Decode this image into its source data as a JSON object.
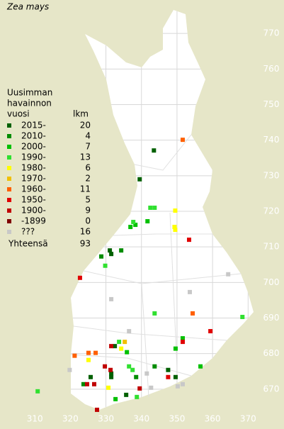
{
  "map": {
    "title": "Zea mays",
    "legend": {
      "heading": [
        "Uusimman",
        "havainnon",
        "vuosi"
      ],
      "count_heading": "lkm",
      "items": [
        {
          "label": "2015-",
          "count": 20,
          "color": "#006000",
          "points": [
            [
              343.5,
              737.1
            ],
            [
              339.5,
              729
            ],
            [
              331.1,
              709
            ],
            [
              331.5,
              708
            ],
            [
              332.5,
              682.1
            ],
            [
              347.5,
              675.4
            ],
            [
              325.7,
              673.4
            ],
            [
              331.5,
              674.4
            ],
            [
              331.5,
              673.4
            ],
            [
              349.6,
              673.4
            ],
            [
              335.7,
              668.4
            ]
          ]
        },
        {
          "label": "2010-",
          "count": 4,
          "color": "#008c00",
          "points": [
            [
              328.7,
              707.3
            ],
            [
              334.3,
              709
            ],
            [
              343.7,
              676.4
            ],
            [
              323.7,
              671.4
            ],
            [
              338.5,
              673.4
            ]
          ]
        },
        {
          "label": "2000-",
          "count": 7,
          "color": "#00c000",
          "points": [
            [
              341.7,
              717.2
            ],
            [
              338.3,
              716.2
            ],
            [
              336.9,
              715.6
            ],
            [
              351.6,
              684.3
            ],
            [
              349.6,
              681.4
            ],
            [
              335.9,
              680.4
            ],
            [
              356.6,
              676.4
            ],
            [
              332.7,
              667.2
            ]
          ]
        },
        {
          "label": "1990-",
          "count": 13,
          "color": "#30e030",
          "points": [
            [
              342.5,
              721
            ],
            [
              343.7,
              721
            ],
            [
              337.7,
              717
            ],
            [
              329.8,
              704.7
            ],
            [
              343.7,
              691.3
            ],
            [
              368.4,
              690.3
            ],
            [
              333.7,
              683.3
            ],
            [
              336.5,
              676.4
            ],
            [
              337.5,
              675.4
            ],
            [
              338.7,
              667.8
            ],
            [
              310.8,
              669.4
            ]
          ]
        },
        {
          "label": "1980-",
          "count": 6,
          "color": "#ffff00",
          "points": [
            [
              349.5,
              720.2
            ],
            [
              349.3,
              715.6
            ],
            [
              349.5,
              714.8
            ],
            [
              334.3,
              681.4
            ],
            [
              325.1,
              678.2
            ],
            [
              330.7,
              670.4
            ]
          ]
        },
        {
          "label": "1970-",
          "count": 2,
          "color": "#f0c000",
          "points": [
            [
              335.3,
              683.3
            ]
          ]
        },
        {
          "label": "1960-",
          "count": 11,
          "color": "#ff6000",
          "points": [
            [
              351.6,
              740.1
            ],
            [
              354.4,
              691.3
            ],
            [
              321.2,
              679.4
            ],
            [
              325.1,
              680.2
            ],
            [
              327.1,
              680.2
            ]
          ]
        },
        {
          "label": "1950-",
          "count": 5,
          "color": "#e00000",
          "points": [
            [
              353.4,
              712
            ],
            [
              322.7,
              701.3
            ],
            [
              359.4,
              686.3
            ],
            [
              351.6,
              683.3
            ],
            [
              347.5,
              673.4
            ]
          ]
        },
        {
          "label": "1900-",
          "count": 9,
          "color": "#c00000",
          "points": [
            [
              331.5,
              682.1
            ],
            [
              331.3,
              675.4
            ],
            [
              329.7,
              676.4
            ],
            [
              324.7,
              671.4
            ],
            [
              326.7,
              671.4
            ],
            [
              339.5,
              670.2
            ],
            [
              327.5,
              664.2
            ]
          ]
        },
        {
          "label": "-1899",
          "count": 0,
          "color": "#800000",
          "points": []
        },
        {
          "label": "???",
          "count": 16,
          "color": "#c8c8c8",
          "points": [
            [
              364.4,
              702.3
            ],
            [
              331.5,
              695.3
            ],
            [
              353.6,
              697.3
            ],
            [
              336.5,
              686.3
            ],
            [
              319.8,
              675.4
            ],
            [
              341.5,
              674.4
            ],
            [
              350.2,
              670.8
            ],
            [
              351.6,
              671.4
            ],
            [
              342.7,
              670.4
            ]
          ]
        }
      ],
      "total_label": "Yhteensä",
      "total": 93
    },
    "xlim": [
      300.2,
      380.1
    ],
    "ylim": [
      659.6,
      779.4
    ],
    "xticks": [
      310,
      320,
      330,
      340,
      350,
      360,
      370
    ],
    "yticks": [
      670,
      680,
      690,
      700,
      710,
      720,
      730,
      740,
      750,
      760,
      770
    ]
  }
}
